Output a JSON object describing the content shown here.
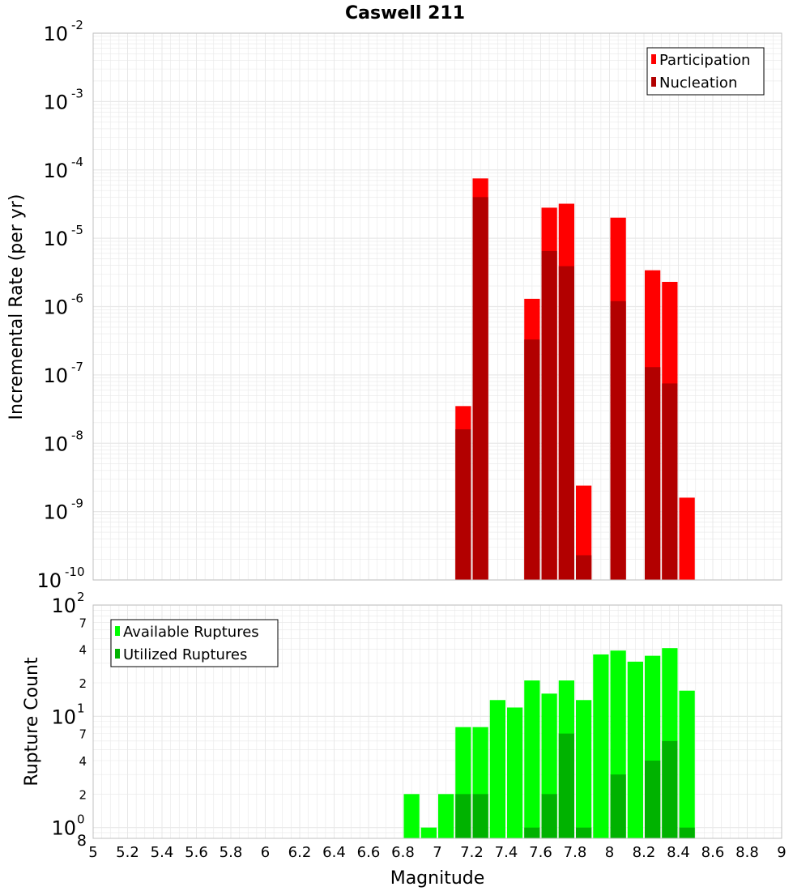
{
  "title": "Caswell 211",
  "xlabel": "Magnitude",
  "x_ticks": [
    "5",
    "5.2",
    "5.4",
    "5.6",
    "5.8",
    "6",
    "6.2",
    "6.4",
    "6.6",
    "6.8",
    "7",
    "7.2",
    "7.4",
    "7.6",
    "7.8",
    "8",
    "8.2",
    "8.4",
    "8.6",
    "8.8",
    "9"
  ],
  "colors": {
    "participation": "#ff0000",
    "nucleation": "#b20000",
    "available": "#00ff00",
    "utilized": "#00b200",
    "grid": "#e8e8e8",
    "frame": "#c0c0c0"
  },
  "chart_data": [
    {
      "type": "bar",
      "panel": "rates",
      "ylabel": "Incremental Rate (per yr)",
      "yscale": "log",
      "xlim": [
        5,
        9
      ],
      "ylim": [
        1e-10,
        0.01
      ],
      "y_ticks": [
        {
          "base": "10",
          "exp": "-10"
        },
        {
          "base": "10",
          "exp": "-9"
        },
        {
          "base": "10",
          "exp": "-8"
        },
        {
          "base": "10",
          "exp": "-7"
        },
        {
          "base": "10",
          "exp": "-6"
        },
        {
          "base": "10",
          "exp": "-5"
        },
        {
          "base": "10",
          "exp": "-4"
        },
        {
          "base": "10",
          "exp": "-3"
        },
        {
          "base": "10",
          "exp": "-2"
        }
      ],
      "legend": [
        "Participation",
        "Nucleation"
      ],
      "legend_position": "top-right",
      "bin_width": 0.1,
      "series": [
        {
          "name": "Participation",
          "x": [
            7.15,
            7.25,
            7.55,
            7.65,
            7.75,
            7.85,
            8.05,
            8.25,
            8.35,
            8.45
          ],
          "values": [
            3.5e-08,
            7.5e-05,
            1.3e-06,
            2.8e-05,
            3.2e-05,
            2.4e-09,
            2e-05,
            3.4e-06,
            2.3e-06,
            1.6e-09
          ]
        },
        {
          "name": "Nucleation",
          "x": [
            7.15,
            7.25,
            7.55,
            7.65,
            7.75,
            7.85,
            8.05,
            8.25,
            8.35
          ],
          "values": [
            1.6e-08,
            4e-05,
            3.3e-07,
            6.5e-06,
            3.9e-06,
            2.3e-10,
            1.2e-06,
            1.3e-07,
            7.5e-08
          ]
        }
      ]
    },
    {
      "type": "bar",
      "panel": "counts",
      "ylabel": "Rupture Count",
      "yscale": "log",
      "xlim": [
        5,
        9
      ],
      "ylim": [
        0.8,
        100
      ],
      "y_major_ticks": [
        {
          "value": 1,
          "base": "10",
          "exp": "0"
        },
        {
          "value": 10,
          "base": "10",
          "exp": "1"
        },
        {
          "value": 100,
          "base": "10",
          "exp": "2"
        }
      ],
      "y_minor_ticks": [
        {
          "value": 0.8,
          "label": "8"
        },
        {
          "value": 2,
          "label": "2"
        },
        {
          "value": 4,
          "label": "4"
        },
        {
          "value": 7,
          "label": "7"
        },
        {
          "value": 20,
          "label": "2"
        },
        {
          "value": 40,
          "label": "4"
        },
        {
          "value": 70,
          "label": "7"
        }
      ],
      "legend": [
        "Available Ruptures",
        "Utilized Ruptures"
      ],
      "legend_position": "top-left",
      "bin_width": 0.1,
      "series": [
        {
          "name": "Available Ruptures",
          "x": [
            6.85,
            6.95,
            7.05,
            7.15,
            7.25,
            7.35,
            7.45,
            7.55,
            7.65,
            7.75,
            7.85,
            7.95,
            8.05,
            8.15,
            8.25,
            8.35,
            8.45
          ],
          "values": [
            2,
            1,
            2,
            8,
            8,
            14,
            12,
            21,
            16,
            21,
            14,
            36,
            39,
            31,
            35,
            41,
            17
          ]
        },
        {
          "name": "Utilized Ruptures",
          "x": [
            7.15,
            7.25,
            7.55,
            7.65,
            7.75,
            7.85,
            8.05,
            8.25,
            8.35,
            8.45
          ],
          "values": [
            2,
            2,
            1,
            2,
            7,
            1,
            3,
            4,
            6,
            1
          ]
        }
      ]
    }
  ]
}
